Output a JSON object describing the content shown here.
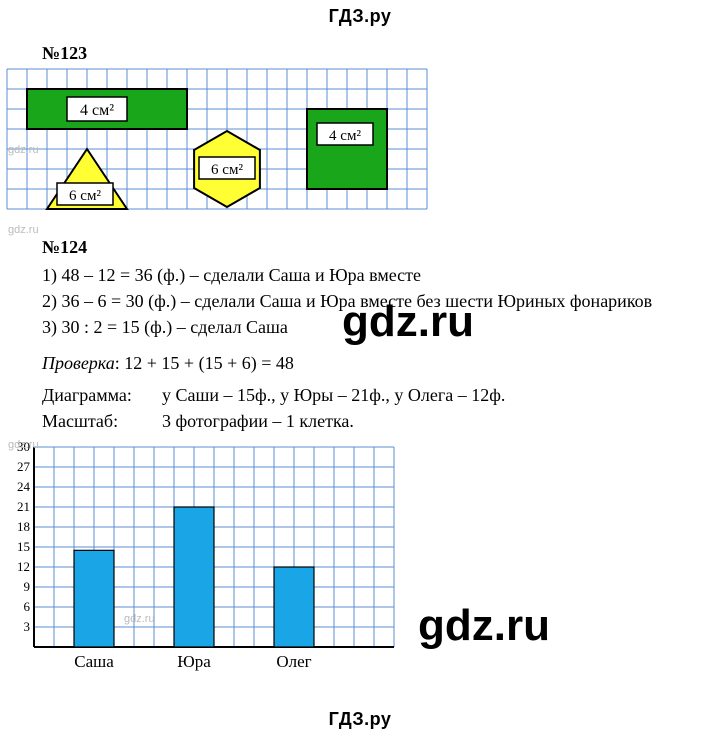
{
  "site": {
    "logo": "ГДЗ.ру"
  },
  "watermark": {
    "small": "gdz.ru",
    "big": "gdz.ru"
  },
  "ex123": {
    "heading": "№123",
    "shapes": {
      "rect1_label": "4 см²",
      "triangle_label": "6 см²",
      "hexagon_label": "6 см²",
      "rect2_label": "4 см²",
      "green": "#1aa61a",
      "yellow": "#ffff33",
      "stroke": "#000000"
    },
    "grid": {
      "cell": 20,
      "cols": 21,
      "rows": 7,
      "bg": "#ffffff",
      "line": "#5a8fd6"
    }
  },
  "ex124": {
    "heading": "№124",
    "line1": "1) 48 – 12 = 36 (ф.) – сделали Саша и Юра вместе",
    "line2": "2) 36 – 6 = 30 (ф.) – сделали Саша и Юра вместе без шести Юриных фонариков",
    "line3": "3) 30 : 2 = 15 (ф.) – сделал Саша",
    "check_label": "Проверка",
    "check_expr": ": 12 + 15 + (15 + 6) = 48",
    "diagram_label": "Диаграмма:",
    "diagram_values": "у Саши – 15ф., у Юры – 21ф., у Олега – 12ф.",
    "scale_label": "Масштаб:",
    "scale_value": "3 фотографии – 1 клетка.",
    "chart": {
      "type": "bar",
      "categories": [
        "Саша",
        "Юра",
        "Олег"
      ],
      "values": [
        15,
        21,
        12
      ],
      "bar_approx": [
        14.5,
        21,
        12
      ],
      "bar_color": "#1aa6e6",
      "axis_color": "#000000",
      "grid_line": "#5a8fd6",
      "bg": "#ffffff",
      "ymax": 30,
      "ytick_step": 3,
      "yticks": [
        "3",
        "6",
        "9",
        "12",
        "15",
        "18",
        "21",
        "24",
        "27",
        "30"
      ],
      "cell": 20,
      "cols": 18,
      "rows": 10,
      "label_fontsize": 17,
      "tick_fontsize": 13
    }
  }
}
